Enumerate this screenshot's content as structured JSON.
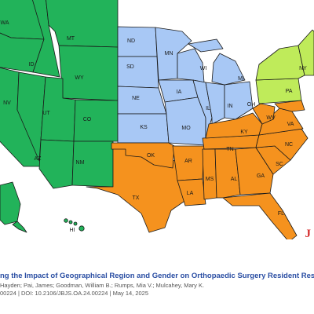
{
  "map": {
    "labels": {
      "WA": "WA",
      "MT": "MT",
      "ID": "ID",
      "WY": "WY",
      "NV": "NV",
      "UT": "UT",
      "CO": "CO",
      "AZ": "AZ",
      "NM": "NM",
      "HI": "HI",
      "ND": "ND",
      "SD": "SD",
      "NE": "NE",
      "KS": "KS",
      "MN": "MN",
      "IA": "IA",
      "MO": "MO",
      "WI": "WI",
      "IL": "IL",
      "IN": "IN",
      "MI": "MI",
      "OH": "OH",
      "OK": "OK",
      "TX": "TX",
      "AR": "AR",
      "LA": "LA",
      "MS": "MS",
      "AL": "AL",
      "TN": "TN",
      "KY": "KY",
      "GA": "GA",
      "FL": "FL",
      "SC": "SC",
      "NC": "NC",
      "VA": "VA",
      "WV": "WV",
      "NY": "NY",
      "PA": "PA"
    },
    "region_colors": {
      "west": "#22b35a",
      "midwest": "#a8c8f5",
      "south": "#f5921e",
      "northeast": "#bfeb5a"
    }
  },
  "badge": "J",
  "caption": {
    "title": "ng the Impact of Geographical Region and Gender on Orthopaedic Surgery Resident Resea",
    "authors": "Hayden; Pai, James; Goodman, William B.; Rumps, Mia V.; Mulcahey, Mary K.",
    "meta": "00224 | DOI: 10.2106/JBJS.OA.24.00224 | May 14, 2025"
  }
}
